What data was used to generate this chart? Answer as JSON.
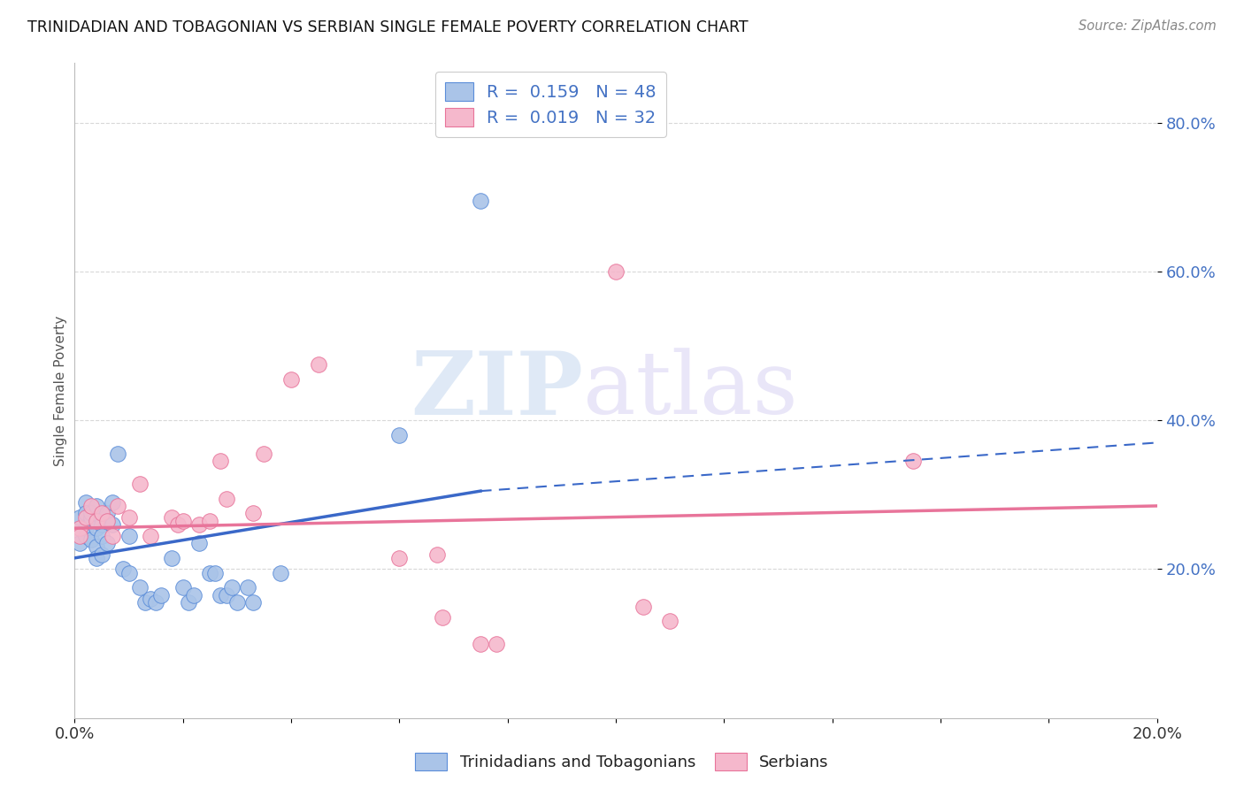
{
  "title": "TRINIDADIAN AND TOBAGONIAN VS SERBIAN SINGLE FEMALE POVERTY CORRELATION CHART",
  "source": "Source: ZipAtlas.com",
  "ylabel": "Single Female Poverty",
  "xlim": [
    0.0,
    0.2
  ],
  "ylim": [
    0.0,
    0.88
  ],
  "yticks": [
    0.2,
    0.4,
    0.6,
    0.8
  ],
  "xticks": [
    0.0,
    0.02,
    0.04,
    0.06,
    0.08,
    0.1,
    0.12,
    0.14,
    0.16,
    0.18,
    0.2
  ],
  "series1_color": "#aac4e8",
  "series1_edge_color": "#5b8dd9",
  "series1_line_color": "#3a68c8",
  "series2_color": "#f5b8cc",
  "series2_edge_color": "#e8749a",
  "series2_line_color": "#e8749a",
  "series1_label": "Trinidadians and Tobagonians",
  "series2_label": "Serbians",
  "legend_text1": "R =  0.159   N = 48",
  "legend_text2": "R =  0.019   N = 32",
  "watermark": "ZIPatlas",
  "background_color": "#ffffff",
  "grid_color": "#d8d8d8",
  "blue_color": "#4472c4",
  "pink_color": "#e8749a",
  "series1_x": [
    0.001,
    0.001,
    0.001,
    0.002,
    0.002,
    0.002,
    0.002,
    0.003,
    0.003,
    0.003,
    0.003,
    0.004,
    0.004,
    0.004,
    0.004,
    0.005,
    0.005,
    0.005,
    0.006,
    0.006,
    0.006,
    0.007,
    0.007,
    0.008,
    0.009,
    0.01,
    0.01,
    0.012,
    0.013,
    0.014,
    0.015,
    0.016,
    0.018,
    0.02,
    0.021,
    0.022,
    0.023,
    0.025,
    0.026,
    0.027,
    0.028,
    0.029,
    0.03,
    0.032,
    0.033,
    0.038,
    0.06,
    0.075
  ],
  "series1_y": [
    0.255,
    0.27,
    0.235,
    0.29,
    0.275,
    0.245,
    0.255,
    0.265,
    0.24,
    0.27,
    0.275,
    0.285,
    0.23,
    0.255,
    0.215,
    0.26,
    0.245,
    0.22,
    0.275,
    0.265,
    0.235,
    0.29,
    0.26,
    0.355,
    0.2,
    0.245,
    0.195,
    0.175,
    0.155,
    0.16,
    0.155,
    0.165,
    0.215,
    0.175,
    0.155,
    0.165,
    0.235,
    0.195,
    0.195,
    0.165,
    0.165,
    0.175,
    0.155,
    0.175,
    0.155,
    0.195,
    0.38,
    0.695
  ],
  "series2_x": [
    0.001,
    0.001,
    0.002,
    0.003,
    0.004,
    0.005,
    0.006,
    0.007,
    0.008,
    0.01,
    0.012,
    0.014,
    0.018,
    0.019,
    0.02,
    0.023,
    0.025,
    0.027,
    0.028,
    0.033,
    0.035,
    0.04,
    0.045,
    0.06,
    0.067,
    0.068,
    0.075,
    0.078,
    0.1,
    0.105,
    0.11,
    0.155
  ],
  "series2_y": [
    0.255,
    0.245,
    0.27,
    0.285,
    0.265,
    0.275,
    0.265,
    0.245,
    0.285,
    0.27,
    0.315,
    0.245,
    0.27,
    0.26,
    0.265,
    0.26,
    0.265,
    0.345,
    0.295,
    0.275,
    0.355,
    0.455,
    0.475,
    0.215,
    0.22,
    0.135,
    0.1,
    0.1,
    0.6,
    0.15,
    0.13,
    0.345
  ],
  "trend1_x0": 0.0,
  "trend1_y0": 0.215,
  "trend1_x1": 0.075,
  "trend1_y1": 0.305,
  "trend1_dash_x0": 0.075,
  "trend1_dash_y0": 0.305,
  "trend1_dash_x1": 0.2,
  "trend1_dash_y1": 0.37,
  "trend2_x0": 0.0,
  "trend2_y0": 0.255,
  "trend2_x1": 0.2,
  "trend2_y1": 0.285
}
